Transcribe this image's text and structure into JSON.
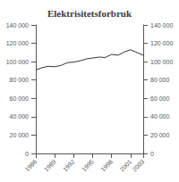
{
  "chart_data": {
    "type": "line",
    "title": "Elektrisitetsforbruk",
    "x": [
      1986,
      1987,
      1988,
      1989,
      1990,
      1991,
      1992,
      1993,
      1994,
      1995,
      1996,
      1997,
      1998,
      1999,
      2000,
      2001,
      2002,
      2003
    ],
    "values": [
      91000,
      93500,
      95000,
      94500,
      96000,
      99000,
      99500,
      101000,
      103000,
      104000,
      105000,
      104500,
      108000,
      107000,
      110500,
      113000,
      110000,
      107000
    ],
    "color": "#333333",
    "xlim": [
      1986,
      2003
    ],
    "xticks": [
      1986,
      1989,
      1992,
      1995,
      1998,
      2001,
      2003
    ],
    "ylim": [
      0,
      140000
    ],
    "yticks": [
      0,
      {
        "value": 20000,
        "label": "20 000"
      },
      {
        "value": 40000,
        "label": "40 000"
      },
      {
        "value": 60000,
        "label": "60 000"
      },
      {
        "value": 80000,
        "label": "80 000"
      },
      {
        "value": 100000,
        "label": "100 000"
      },
      {
        "value": 120000,
        "label": "120 000"
      },
      {
        "value": 140000,
        "label": "140 000"
      }
    ],
    "y2lim": [
      0,
      140000
    ],
    "y2ticks": [
      0,
      {
        "value": 20000,
        "label": "20 000"
      },
      {
        "value": 40000,
        "label": "40 000"
      },
      {
        "value": 60000,
        "label": "60 000"
      },
      {
        "value": 80000,
        "label": "80 000"
      },
      {
        "value": 100000,
        "label": "100 000"
      },
      {
        "value": 120000,
        "label": "120 000"
      },
      {
        "value": 140000,
        "label": "140 000"
      }
    ],
    "grid": false
  }
}
